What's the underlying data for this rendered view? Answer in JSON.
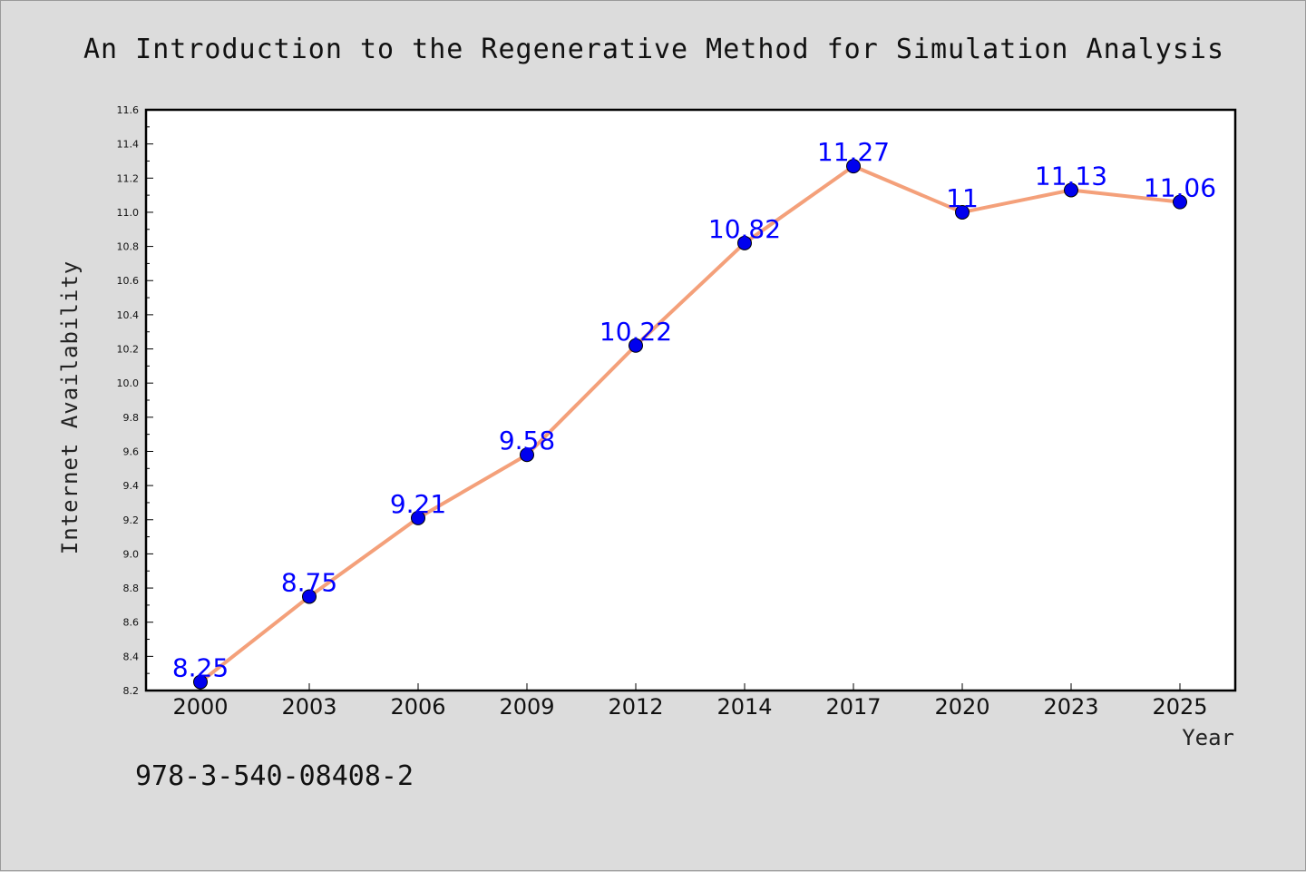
{
  "chart_data": {
    "type": "line",
    "title": "An Introduction to the Regenerative Method for Simulation Analysis",
    "xlabel": "Year",
    "ylabel": "Internet Availability",
    "categories": [
      "2000",
      "2003",
      "2006",
      "2009",
      "2012",
      "2014",
      "2017",
      "2020",
      "2023",
      "2025"
    ],
    "series": [
      {
        "values": [
          8.25,
          8.75,
          9.21,
          9.58,
          10.22,
          10.82,
          11.27,
          11,
          11.13,
          11.06
        ],
        "labels": [
          "8.25",
          "8.75",
          "9.21",
          "9.58",
          "10.22",
          "10.82",
          "11.27",
          "11",
          "11.13",
          "11.06"
        ]
      }
    ],
    "ylim": [
      8.2,
      11.6
    ],
    "yticks": [
      "8.2",
      "8.4",
      "8.6",
      "8.8",
      "9.0",
      "9.2",
      "9.4",
      "9.6",
      "9.8",
      "10.0",
      "10.2",
      "10.4",
      "10.6",
      "10.8",
      "11.0",
      "11.2",
      "11.4",
      "11.6"
    ],
    "grid": false,
    "line_color": "#f4a07a",
    "marker_color": "#0000ee",
    "label_color": "#0000ff"
  },
  "footer": {
    "isbn": "978-3-540-08408-2"
  }
}
